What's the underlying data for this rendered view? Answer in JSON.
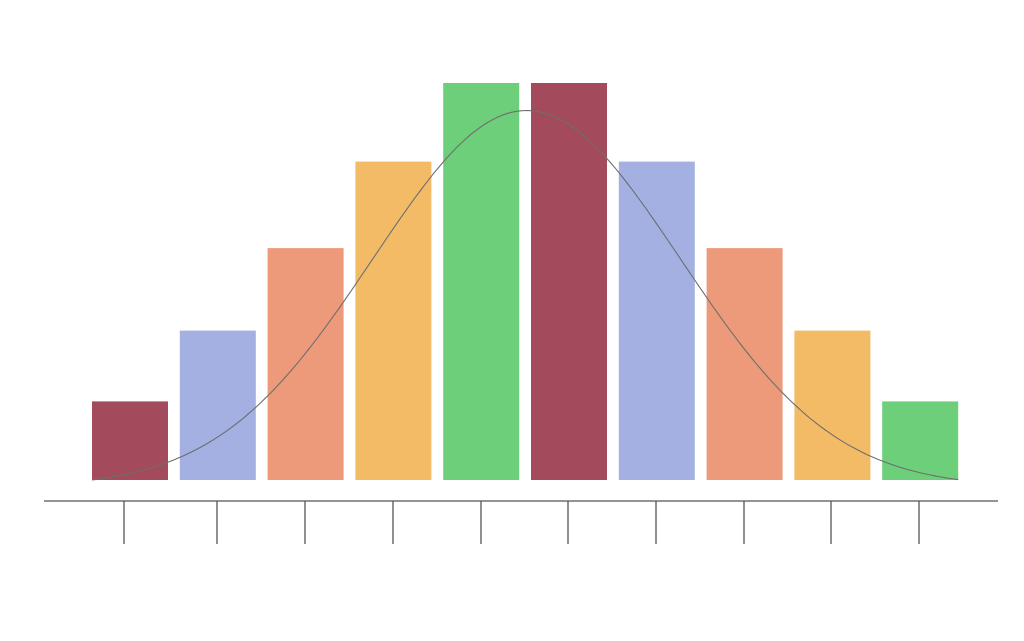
{
  "chart_data": {
    "type": "bar",
    "title": "",
    "xlabel": "",
    "ylabel": "",
    "categories": [
      "",
      "",
      "",
      "",
      "",
      "",
      "",
      "",
      "",
      ""
    ],
    "values": [
      1.0,
      1.9,
      2.95,
      4.05,
      5.05,
      5.05,
      4.05,
      2.95,
      1.9,
      1.0
    ],
    "ylim": [
      0,
      5.05
    ],
    "overlay": {
      "type": "line",
      "description_shape": "normal-density",
      "mean_index": 4.95,
      "peak": 4.7
    },
    "tick_count": 10,
    "grid": false,
    "legend": "none",
    "colors": [
      "#a34a5c",
      "#a3b0e1",
      "#ed9a7a",
      "#f4bb67",
      "#6dcf79",
      "#a34a5c",
      "#a3b0e1",
      "#ed9a7a",
      "#f4bb67",
      "#6dcf79"
    ],
    "curve_color": "#6e6e6e",
    "axis_color": "#555555"
  }
}
